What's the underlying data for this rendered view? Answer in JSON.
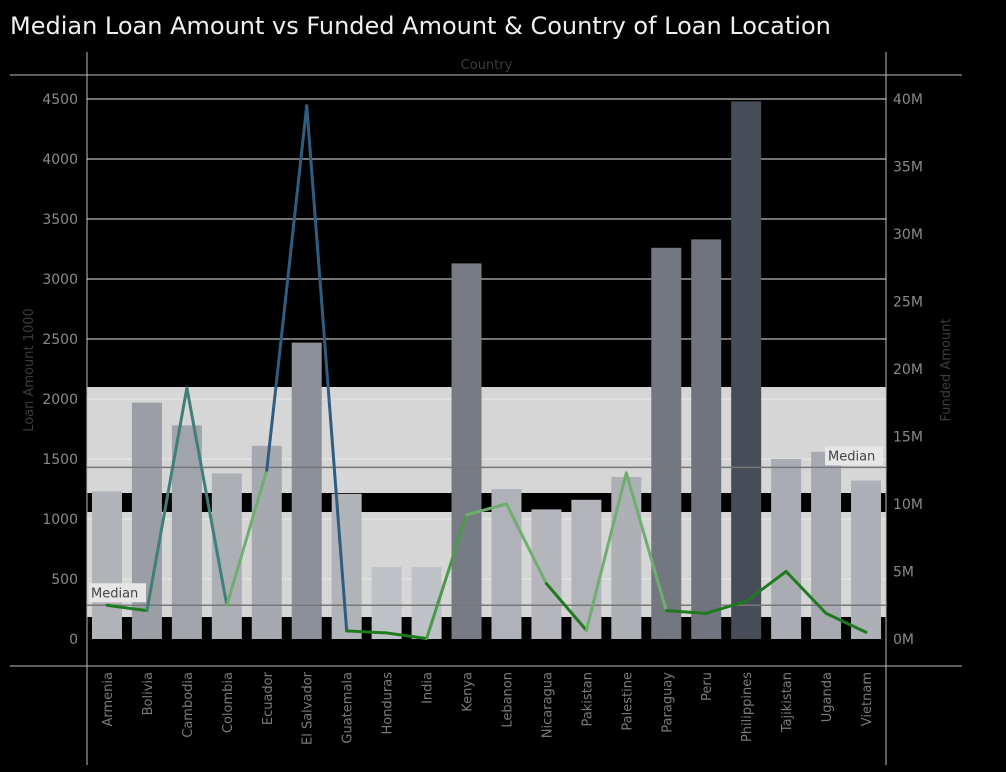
{
  "title": "Median Loan Amount vs Funded Amount & Country of Loan Location",
  "chart_data": {
    "type": "bar",
    "title": "Median Loan Amount vs Funded Amount & Country of Loan Location",
    "xlabel": "Country",
    "ylabel_left": "Loan Amount 1000",
    "ylabel_right": "Funded Amount",
    "categories": [
      "Armenia",
      "Bolivia",
      "Cambodia",
      "Colombia",
      "Ecuador",
      "El Salvador",
      "Guatemala",
      "Honduras",
      "India",
      "Kenya",
      "Lebanon",
      "Nicaragua",
      "Pakistan",
      "Palestine",
      "Paraguay",
      "Peru",
      "Philippines",
      "Tajikistan",
      "Uganda",
      "Vietnam"
    ],
    "series": [
      {
        "axis": "left",
        "type": "bar",
        "values": [
          1230,
          1970,
          1780,
          1380,
          1610,
          2470,
          1210,
          600,
          600,
          3130,
          1250,
          1080,
          1160,
          1350,
          3260,
          3330,
          4480,
          1500,
          1560,
          1320
        ]
      },
      {
        "axis": "right",
        "type": "line",
        "values": [
          2500000,
          2100000,
          18600000,
          2500000,
          12500000,
          39500000,
          600000,
          450000,
          30000,
          9200000,
          10000000,
          4100000,
          650000,
          12300000,
          2100000,
          1900000,
          2800000,
          5000000,
          1900000,
          500000
        ]
      }
    ],
    "ylim_left": [
      0,
      4500
    ],
    "yticks_left": [
      0,
      500,
      1000,
      1500,
      2000,
      2500,
      3000,
      3500,
      4000,
      4500
    ],
    "ylim_right": [
      0,
      40000000
    ],
    "yticks_right": [
      "0M",
      "5M",
      "10M",
      "15M",
      "20M",
      "25M",
      "30M",
      "35M",
      "40M"
    ],
    "reference_lines": [
      {
        "label": "Median",
        "axis": "left",
        "value": 1430
      },
      {
        "label": "Median",
        "axis": "right",
        "value": 2500000
      }
    ],
    "grid": true
  }
}
